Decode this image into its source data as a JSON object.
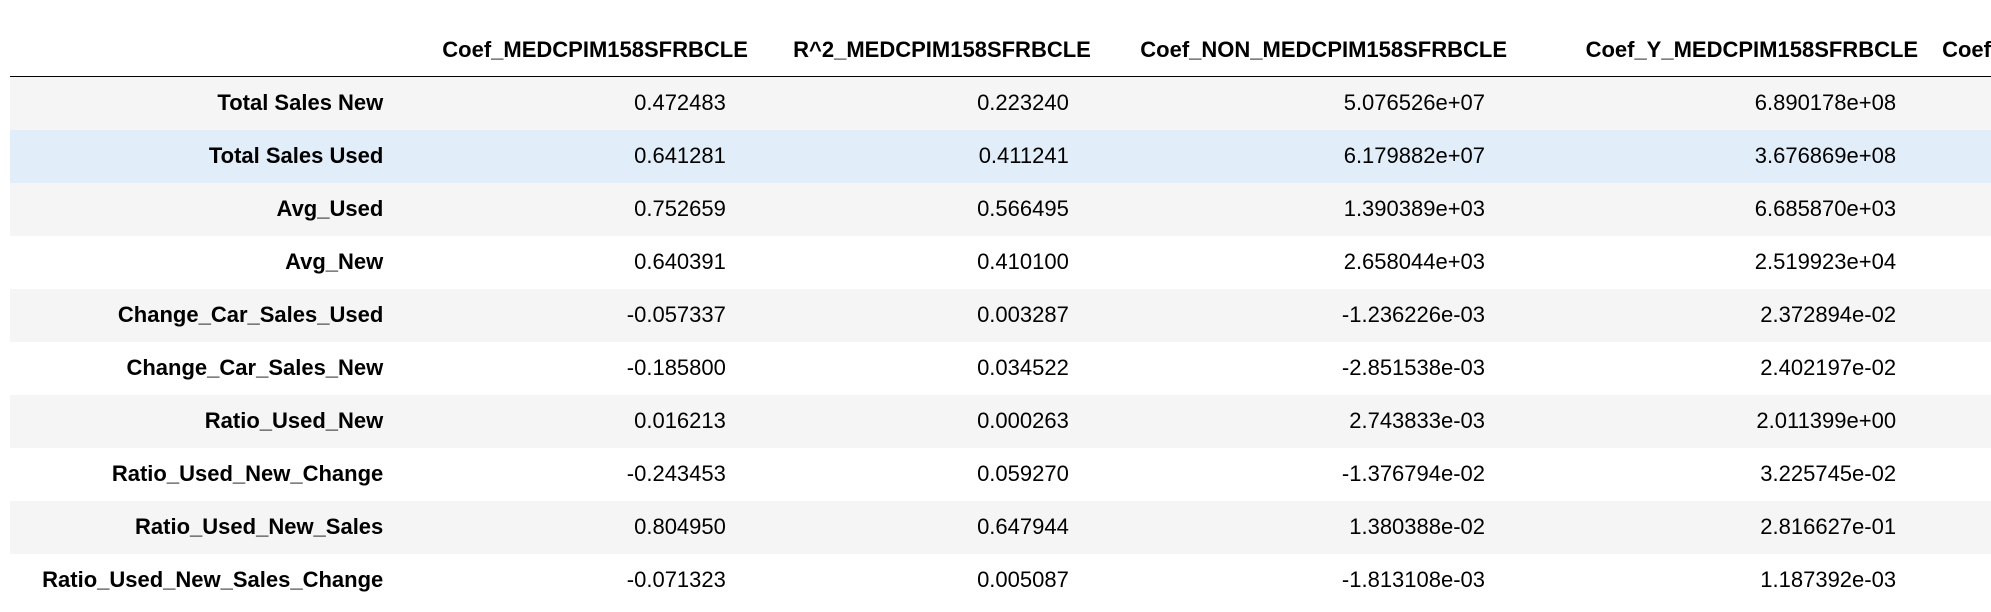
{
  "table": {
    "columns": [
      "Coef_MEDCPIM158SFRBCLE",
      "R^2_MEDCPIM158SFRBCLE",
      "Coef_NON_MEDCPIM158SFRBCLE",
      "Coef_Y_MEDCPIM158SFRBCLE",
      "Coef"
    ],
    "rows": [
      {
        "label": "Total Sales New",
        "values": [
          "0.472483",
          "0.223240",
          "5.076526e+07",
          "6.890178e+08"
        ]
      },
      {
        "label": "Total Sales Used",
        "values": [
          "0.641281",
          "0.411241",
          "6.179882e+07",
          "3.676869e+08"
        ]
      },
      {
        "label": "Avg_Used",
        "values": [
          "0.752659",
          "0.566495",
          "1.390389e+03",
          "6.685870e+03"
        ]
      },
      {
        "label": "Avg_New",
        "values": [
          "0.640391",
          "0.410100",
          "2.658044e+03",
          "2.519923e+04"
        ]
      },
      {
        "label": "Change_Car_Sales_Used",
        "values": [
          "-0.057337",
          "0.003287",
          "-1.236226e-03",
          "2.372894e-02"
        ]
      },
      {
        "label": "Change_Car_Sales_New",
        "values": [
          "-0.185800",
          "0.034522",
          "-2.851538e-03",
          "2.402197e-02"
        ]
      },
      {
        "label": "Ratio_Used_New",
        "values": [
          "0.016213",
          "0.000263",
          "2.743833e-03",
          "2.011399e+00"
        ]
      },
      {
        "label": "Ratio_Used_New_Change",
        "values": [
          "-0.243453",
          "0.059270",
          "-1.376794e-02",
          "3.225745e-02"
        ]
      },
      {
        "label": "Ratio_Used_New_Sales",
        "values": [
          "0.804950",
          "0.647944",
          "1.380388e-02",
          "2.816627e-01"
        ]
      },
      {
        "label": "Ratio_Used_New_Sales_Change",
        "values": [
          "-0.071323",
          "0.005087",
          "-1.813108e-03",
          "1.187392e-03"
        ]
      }
    ],
    "highlighted_row": "Total Sales Used"
  },
  "colors": {
    "stripe": "#f5f5f5",
    "hover": "#e1edf9",
    "border": "#000000"
  }
}
